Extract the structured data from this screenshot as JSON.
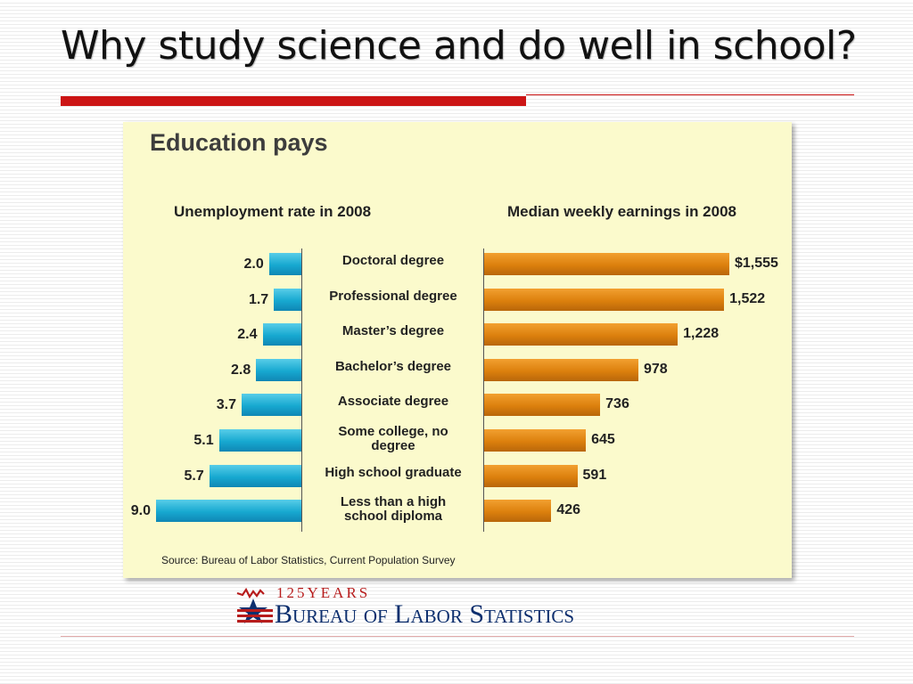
{
  "slide": {
    "title": "Why study science and do well in school?"
  },
  "chart_data": {
    "type": "bar",
    "title": "Education pays",
    "categories": [
      "Doctoral degree",
      "Professional degree",
      "Master’s degree",
      "Bachelor’s degree",
      "Associate degree",
      "Some college, no\ndegree",
      "High school graduate",
      "Less than a high\nschool diploma"
    ],
    "series": [
      {
        "name": "Unemployment rate in 2008",
        "values": [
          2.0,
          1.7,
          2.4,
          2.8,
          3.7,
          5.1,
          5.7,
          9.0
        ],
        "labels": [
          "2.0",
          "1.7",
          "2.4",
          "2.8",
          "3.7",
          "5.1",
          "5.7",
          "9.0"
        ],
        "color": "#1aa8d2"
      },
      {
        "name": "Median weekly earnings in 2008",
        "values": [
          1555,
          1522,
          1228,
          978,
          736,
          645,
          591,
          426
        ],
        "labels": [
          "$1,555",
          "1,522",
          "1,228",
          "978",
          "736",
          "645",
          "591",
          "426"
        ],
        "color": "#df830f"
      }
    ],
    "source": "Source: Bureau of Labor Statistics, Current Population Survey"
  },
  "logo": {
    "top_text": "125YEARS",
    "main_text": "Bureau of Labor Statistics"
  },
  "colors": {
    "accent": "#cc1515",
    "panel_background": "#fbfacc",
    "logo_navy": "#0d2f6e"
  }
}
